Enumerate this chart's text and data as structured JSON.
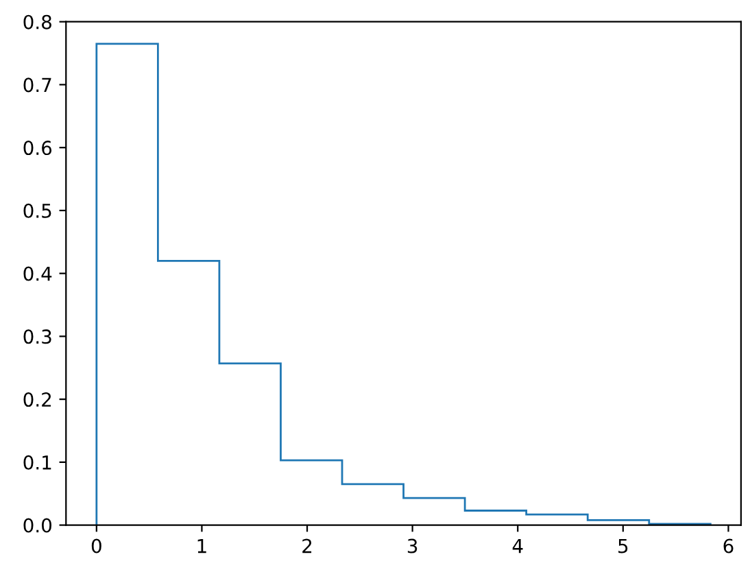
{
  "chart_data": {
    "type": "histogram",
    "bins": [
      0,
      0.583,
      1.166,
      1.749,
      2.332,
      2.915,
      3.498,
      4.081,
      4.664,
      5.247,
      5.83
    ],
    "values": [
      0.765,
      0.42,
      0.257,
      0.103,
      0.065,
      0.043,
      0.023,
      0.017,
      0.008,
      0.002
    ],
    "color": "#1f77b4",
    "xlim": [
      -0.29,
      6.12
    ],
    "ylim": [
      0,
      0.8
    ],
    "xticks": [
      0,
      1,
      2,
      3,
      4,
      5,
      6
    ],
    "yticks": [
      {
        "value": 0,
        "label": "0.0"
      },
      0.1,
      0.2,
      0.3,
      0.4,
      0.5,
      0.6,
      0.7,
      0.8
    ],
    "grid": false
  }
}
